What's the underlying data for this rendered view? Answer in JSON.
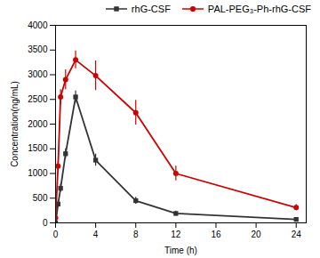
{
  "chart_data": {
    "type": "line",
    "xlabel": "Time (h)",
    "ylabel": "Concentration(ng/mL)",
    "x": [
      0,
      0.25,
      0.5,
      1,
      2,
      4,
      8,
      12,
      24
    ],
    "series": [
      {
        "name": "rhG-CSF",
        "color": "#333333",
        "marker": "square",
        "values": [
          0,
          380,
          700,
          1400,
          2550,
          1270,
          450,
          190,
          70
        ],
        "errors": [
          0,
          60,
          80,
          100,
          120,
          120,
          70,
          50,
          20
        ]
      },
      {
        "name": "PAL-PEG₃-Ph-rhG-CSF",
        "color": "#cc0000",
        "marker": "circle",
        "values": [
          100,
          1150,
          2550,
          2900,
          3300,
          2980,
          2230,
          1000,
          310
        ],
        "errors": [
          30,
          100,
          150,
          200,
          180,
          300,
          250,
          150,
          60
        ]
      }
    ],
    "xlim": [
      0,
      25
    ],
    "ylim": [
      0,
      4000
    ],
    "xticks": [
      0,
      4,
      8,
      12,
      16,
      20,
      24
    ],
    "yticks": [
      0,
      500,
      1000,
      1500,
      2000,
      2500,
      3000,
      3500,
      4000
    ],
    "legend": "upper right",
    "grid": false
  }
}
